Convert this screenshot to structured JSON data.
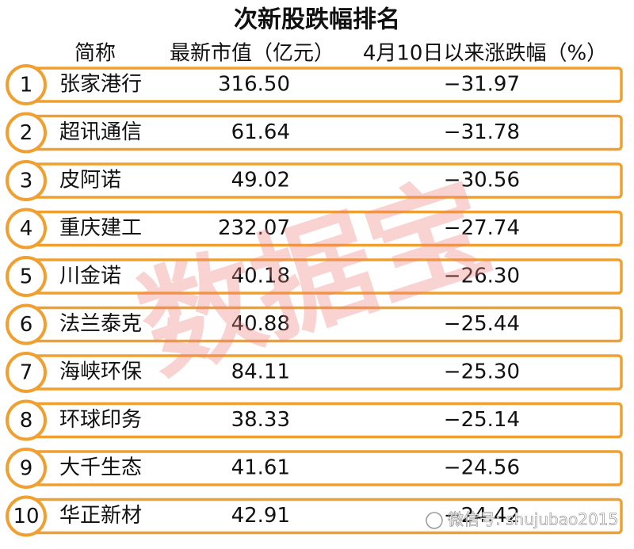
{
  "title": "次新股跌幅排名",
  "table": {
    "headers": [
      "简称",
      "最新市值（亿元）",
      "4月10日以来涨跌幅（%）"
    ],
    "rows": [
      [
        "1",
        "张家港行",
        "316.50",
        "−31.97"
      ],
      [
        "2",
        "超讯通信",
        "61.64",
        "−31.78"
      ],
      [
        "3",
        "皮阿诺",
        "49.02",
        "−30.56"
      ],
      [
        "4",
        "重庆建工",
        "232.07",
        "−27.74"
      ],
      [
        "5",
        "川金诺",
        "40.18",
        "−26.30"
      ],
      [
        "6",
        "法兰泰克",
        "40.88",
        "−25.44"
      ],
      [
        "7",
        "海峡环保",
        "84.11",
        "−25.30"
      ],
      [
        "8",
        "环球印务",
        "38.33",
        "−25.14"
      ],
      [
        "9",
        "大千生态",
        "41.61",
        "−24.56"
      ],
      [
        "10",
        "华正新材",
        "42.91",
        "−24.42"
      ]
    ]
  },
  "watermark": "数据宝",
  "footer": "微信号: shujubao2015"
}
